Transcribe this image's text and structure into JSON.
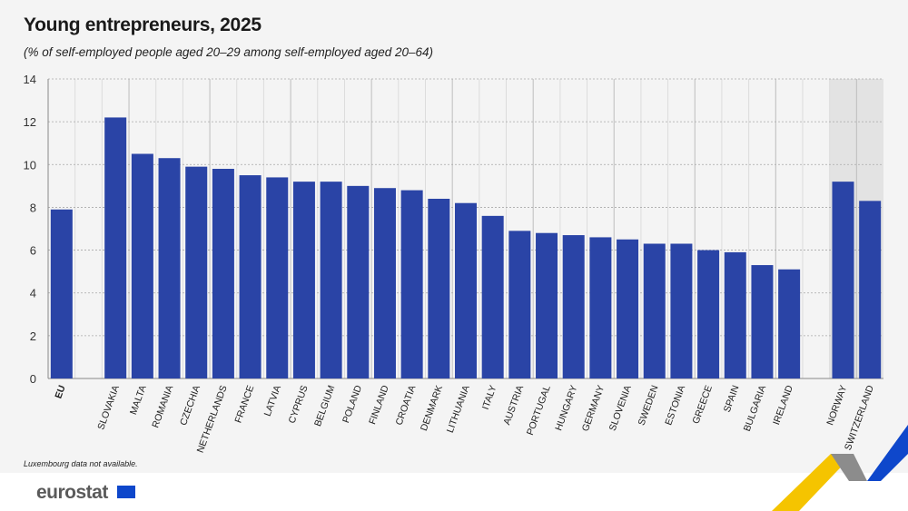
{
  "header": {
    "title": "Young entrepreneurs, 2025",
    "subtitle": "(% of self-employed people aged 20–29 among self-employed aged 20–64)"
  },
  "footnote": "Luxembourg data not available.",
  "brand": {
    "logo_text": "eurostat",
    "flag_icon": "eu-flag-icon"
  },
  "colors": {
    "bar": "#2a44a6",
    "background": "#f4f4f4",
    "highlight": "#e3e3e3"
  },
  "chart_data": {
    "type": "bar",
    "title": "Young entrepreneurs, 2025",
    "subtitle": "(% of self-employed people aged 20–29 among self-employed aged 20–64)",
    "ylim": [
      0,
      14
    ],
    "yticks": [
      0,
      2,
      4,
      6,
      8,
      10,
      12,
      14
    ],
    "grid": true,
    "categories": [
      "EU",
      "",
      "SLOVAKIA",
      "MALTA",
      "ROMANIA",
      "CZECHIA",
      "NETHERLANDS",
      "FRANCE",
      "LATVIA",
      "CYPRUS",
      "BELGIUM",
      "POLAND",
      "FINLAND",
      "CROATIA",
      "DENMARK",
      "LITHUANIA",
      "ITALY",
      "AUSTRIA",
      "PORTUGAL",
      "HUNGARY",
      "GERMANY",
      "SLOVENIA",
      "SWEDEN",
      "ESTONIA",
      "GREECE",
      "SPAIN",
      "BULGARIA",
      "IRELAND",
      "",
      "NORWAY",
      "SWITZERLAND"
    ],
    "values": [
      7.9,
      null,
      12.2,
      10.5,
      10.3,
      9.9,
      9.8,
      9.5,
      9.4,
      9.2,
      9.2,
      9.0,
      8.9,
      8.8,
      8.4,
      8.2,
      7.6,
      6.9,
      6.8,
      6.7,
      6.6,
      6.5,
      6.3,
      6.3,
      6.0,
      5.9,
      5.3,
      5.1,
      null,
      9.2,
      8.3
    ],
    "highlighted": [
      "NORWAY",
      "SWITZERLAND"
    ],
    "bold_categories": [
      "EU"
    ]
  }
}
